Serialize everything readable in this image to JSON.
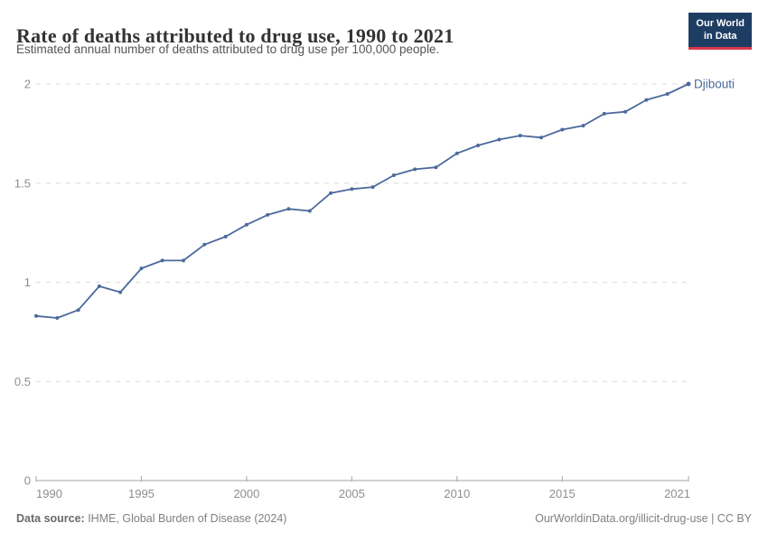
{
  "header": {
    "title": "Rate of deaths attributed to drug use, 1990 to 2021",
    "subtitle": "Estimated annual number of deaths attributed to drug use per 100,000 people.",
    "logo": {
      "line1": "Our World",
      "line2": "in Data"
    }
  },
  "colors": {
    "line": "#4C6A9C",
    "logo_bg": "#1d3d63",
    "logo_accent": "#dc354c",
    "gridline": "#dcdcdc",
    "axis": "#a5a5a5",
    "tick_text": "#8e8e8e"
  },
  "chart_data": {
    "type": "line",
    "title": "Rate of deaths attributed to drug use, 1990 to 2021",
    "xlabel": "",
    "ylabel": "Estimated annual deaths attributed to drug use per 100,000 people",
    "xlim": [
      1990,
      2021
    ],
    "ylim": [
      0,
      2
    ],
    "grid": "dashed-horizontal",
    "legend_position": "end-of-line-label",
    "x_ticks": [
      {
        "value": 1990,
        "label": "1990"
      },
      {
        "value": 1995,
        "label": "1995"
      },
      {
        "value": 2000,
        "label": "2000"
      },
      {
        "value": 2005,
        "label": "2005"
      },
      {
        "value": 2010,
        "label": "2010"
      },
      {
        "value": 2015,
        "label": "2015"
      },
      {
        "value": 2021,
        "label": "2021"
      }
    ],
    "y_ticks": [
      {
        "value": 0,
        "label": "0"
      },
      {
        "value": 0.5,
        "label": "0.5"
      },
      {
        "value": 1,
        "label": "1"
      },
      {
        "value": 1.5,
        "label": "1.5"
      },
      {
        "value": 2,
        "label": "2"
      }
    ],
    "series": [
      {
        "name": "Djibouti",
        "color": "#4C6A9C",
        "x": [
          1990,
          1991,
          1992,
          1993,
          1994,
          1995,
          1996,
          1997,
          1998,
          1999,
          2000,
          2001,
          2002,
          2003,
          2004,
          2005,
          2006,
          2007,
          2008,
          2009,
          2010,
          2011,
          2012,
          2013,
          2014,
          2015,
          2016,
          2017,
          2018,
          2019,
          2020,
          2021
        ],
        "values": [
          0.83,
          0.82,
          0.86,
          0.98,
          0.95,
          1.07,
          1.11,
          1.11,
          1.19,
          1.23,
          1.29,
          1.34,
          1.37,
          1.36,
          1.45,
          1.47,
          1.48,
          1.54,
          1.57,
          1.58,
          1.65,
          1.69,
          1.72,
          1.74,
          1.73,
          1.77,
          1.79,
          1.85,
          1.86,
          1.92,
          1.95,
          2.0
        ]
      }
    ]
  },
  "footer": {
    "datasource_label": "Data source:",
    "datasource_value": " IHME, Global Burden of Disease (2024)",
    "link": "OurWorldinData.org/illicit-drug-use | CC BY"
  }
}
